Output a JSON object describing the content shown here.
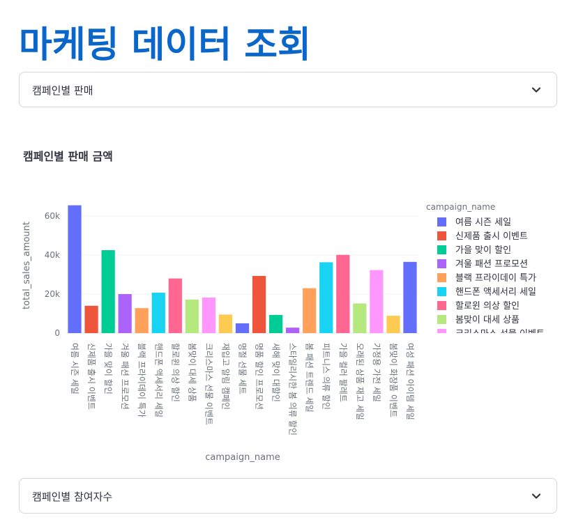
{
  "page": {
    "title": "마케팅 데이터 조회"
  },
  "selects": {
    "top": {
      "value": "캠페인별 판매",
      "icon": "chevron-down-icon"
    },
    "bottom": {
      "value": "캠페인별 참여자수",
      "icon": "chevron-down-icon"
    }
  },
  "chart_data": {
    "type": "bar",
    "title": "캠페인별 판매 금액",
    "xlabel": "campaign_name",
    "ylabel": "total_sales_amount",
    "ylim": [
      0,
      70000
    ],
    "yticks": [
      0,
      20000,
      40000,
      60000
    ],
    "ytick_labels": [
      "0",
      "20k",
      "40k",
      "60k"
    ],
    "grid": true,
    "legend_title": "campaign_name",
    "legend_position": "right",
    "categories": [
      "여름 시즌 세일",
      "신제품 출시 이벤트",
      "가을 맞이 할인",
      "겨울 패션 프로모션",
      "블랙 프라이데이 특가",
      "핸드폰 액세서리 세일",
      "할로윈 의상 할인",
      "봄맞이 대세 상품",
      "크리스마스 선물 이벤트",
      "재입고 알림 캠페인",
      "명절 선물 세트",
      "명품 할인 프로모션",
      "새해 맞이 대할인",
      "스타일리시한 봄 의류 할인",
      "봄 패션 트렌드 세일",
      "피트니스 의류 할인",
      "가을 컬러 팔레트",
      "오래된 상품 재고 세일",
      "가정용 가전 세일",
      "봄맞이 화장품 이벤트",
      "여성 패션 아이템 세일"
    ],
    "values": [
      65500,
      14000,
      42500,
      20000,
      12800,
      20700,
      28000,
      17200,
      18200,
      9500,
      5000,
      29300,
      9300,
      2800,
      23000,
      36300,
      40100,
      15200,
      32300,
      8900,
      36500
    ],
    "colors": [
      "#636efa",
      "#ef553b",
      "#00cc96",
      "#ab63fa",
      "#ffa15a",
      "#19d3f3",
      "#ff6692",
      "#b6e880",
      "#ff97ff",
      "#fecb52",
      "#636efa",
      "#ef553b",
      "#00cc96",
      "#ab63fa",
      "#ffa15a",
      "#19d3f3",
      "#ff6692",
      "#b6e880",
      "#ff97ff",
      "#fecb52",
      "#636efa"
    ],
    "legend_items": [
      "여름 시즌 세일",
      "신제품 출시 이벤트",
      "가을 맞이 할인",
      "겨울 패션 프로모션",
      "블랙 프라이데이 특가",
      "핸드폰 액세서리 세일",
      "할로윈 의상 할인",
      "봄맞이 대세 상품",
      "크리스마스 선물 이벤트"
    ]
  }
}
